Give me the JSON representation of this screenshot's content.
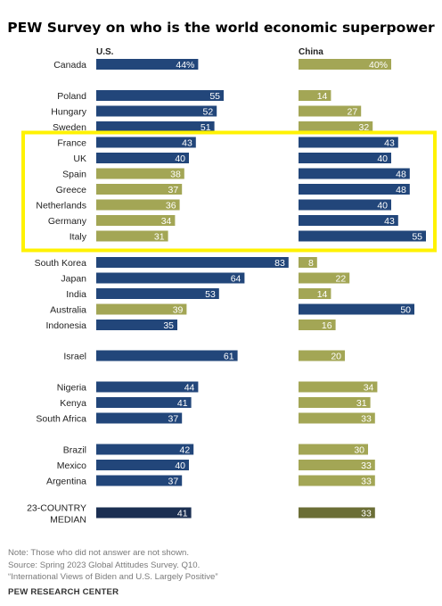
{
  "chart_data": {
    "type": "bar",
    "title": "PEW Survey on who is the world economic superpower",
    "value_suffix": "%",
    "series": [
      {
        "name": "U.S.",
        "values": [
          44,
          55,
          52,
          51,
          43,
          40,
          38,
          37,
          36,
          34,
          31,
          83,
          64,
          53,
          39,
          35,
          61,
          44,
          41,
          37,
          42,
          40,
          37,
          41
        ]
      },
      {
        "name": "China",
        "values": [
          40,
          14,
          27,
          32,
          43,
          40,
          48,
          48,
          40,
          43,
          55,
          8,
          22,
          14,
          50,
          16,
          20,
          34,
          31,
          33,
          30,
          33,
          33,
          33
        ]
      }
    ],
    "categories": [
      "Canada",
      "Poland",
      "Hungary",
      "Sweden",
      "France",
      "UK",
      "Spain",
      "Greece",
      "Netherlands",
      "Germany",
      "Italy",
      "South Korea",
      "Japan",
      "India",
      "Australia",
      "Indonesia",
      "Israel",
      "Nigeria",
      "Kenya",
      "South Africa",
      "Brazil",
      "Mexico",
      "Argentina",
      "23-COUNTRY MEDIAN"
    ],
    "category_lines": [
      [
        "Canada"
      ],
      [
        "Poland"
      ],
      [
        "Hungary"
      ],
      [
        "Sweden"
      ],
      [
        "France"
      ],
      [
        "UK"
      ],
      [
        "Spain"
      ],
      [
        "Greece"
      ],
      [
        "Netherlands"
      ],
      [
        "Germany"
      ],
      [
        "Italy"
      ],
      [
        "South Korea"
      ],
      [
        "Japan"
      ],
      [
        "India"
      ],
      [
        "Australia"
      ],
      [
        "Indonesia"
      ],
      [
        "Israel"
      ],
      [
        "Nigeria"
      ],
      [
        "Kenya"
      ],
      [
        "South Africa"
      ],
      [
        "Brazil"
      ],
      [
        "Mexico"
      ],
      [
        "Argentina"
      ],
      [
        "23-COUNTRY",
        "MEDIAN"
      ]
    ],
    "groups": [
      [
        0
      ],
      [
        1,
        2,
        3
      ],
      [
        4,
        5,
        6,
        7,
        8,
        9,
        10
      ],
      [
        11,
        12,
        13,
        14,
        15
      ],
      [
        16
      ],
      [
        17,
        18,
        19
      ],
      [
        20,
        21,
        22
      ],
      [
        23
      ]
    ],
    "highlight": {
      "from": "France",
      "to": "Italy",
      "color": "#fff200"
    },
    "colors": {
      "leading": "#22467a",
      "trailing": "#a3a655",
      "median_leading": "#1b2f52",
      "median_trailing": "#6b6e36"
    }
  },
  "footer": {
    "note": "Note: Those who did not answer are not shown.",
    "source": "Source: Spring 2023 Global Attitudes Survey. Q10.",
    "report": "“International Views of Biden and U.S. Largely Positive”",
    "org": "PEW RESEARCH CENTER"
  }
}
